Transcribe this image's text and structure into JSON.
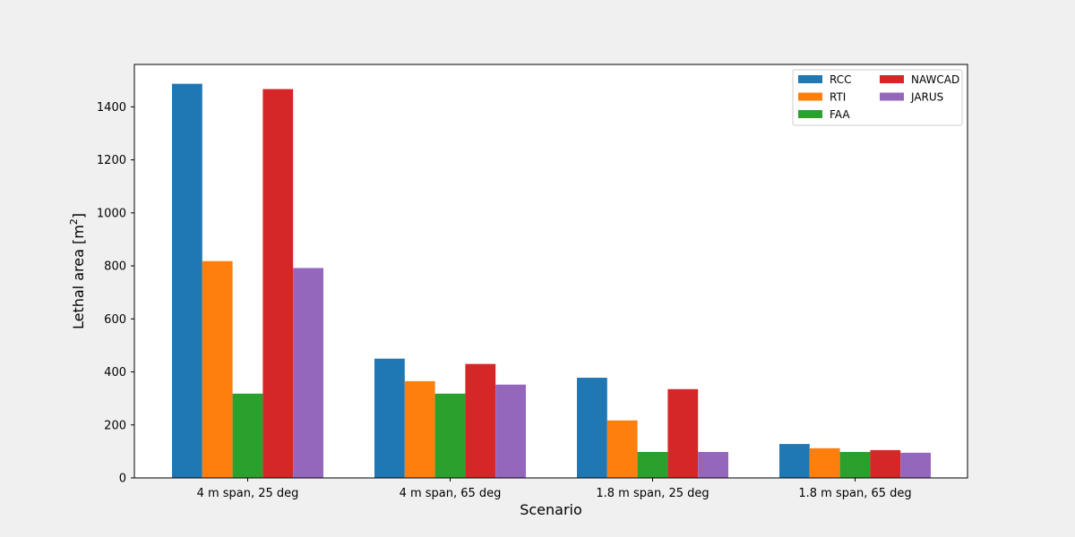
{
  "chart_data": {
    "type": "bar",
    "categories": [
      "4 m span, 25 deg",
      "4 m span, 65 deg",
      "1.8 m span, 25 deg",
      "1.8 m span, 65 deg"
    ],
    "series": [
      {
        "name": "RCC",
        "color": "#1f77b4",
        "values": [
          1487,
          450,
          378,
          128
        ]
      },
      {
        "name": "RTI",
        "color": "#ff7f0e",
        "values": [
          818,
          365,
          217,
          112
        ]
      },
      {
        "name": "FAA",
        "color": "#2ca02c",
        "values": [
          318,
          318,
          98,
          98
        ]
      },
      {
        "name": "NAWCAD",
        "color": "#d62728",
        "values": [
          1467,
          430,
          335,
          105
        ]
      },
      {
        "name": "JARUS",
        "color": "#9467bd",
        "values": [
          792,
          352,
          98,
          95
        ]
      }
    ],
    "title": "",
    "xlabel": "Scenario",
    "ylabel": "Lethal area [m",
    "ylabel_superscript": "2",
    "ylabel_suffix": "]",
    "ylim": [
      0,
      1560
    ],
    "yticks": [
      0,
      200,
      400,
      600,
      800,
      1000,
      1200,
      1400
    ],
    "grid": false,
    "legend_placement": "top-right",
    "legend_columns": 2
  }
}
